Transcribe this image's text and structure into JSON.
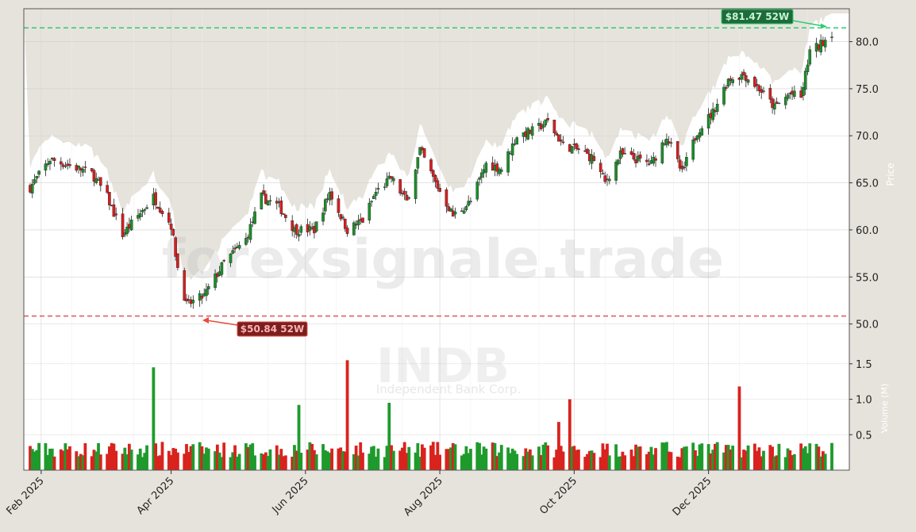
{
  "watermark": {
    "text": "forexsignale.trade",
    "symbol": "INDB",
    "company": "Independent Bank Corp."
  },
  "axis": {
    "price_label": "Price",
    "volume_label": "Volume (M)"
  },
  "annotations": {
    "high": {
      "text": "$81.47 52W",
      "value": 81.47,
      "color": "#2ecc71"
    },
    "low": {
      "text": "$50.84 52W",
      "value": 50.84,
      "color": "#e74c3c"
    }
  },
  "colors": {
    "up": "#1a8f2a",
    "down": "#d81e1e",
    "vol_up": "#1f9a2c",
    "vol_down": "#d9231e"
  },
  "chart_data": {
    "type": "candlestick",
    "x_start": "2025-01-27",
    "x_end": "2026-01-26",
    "x_ticks": [
      {
        "label": "Feb 2025",
        "date": "2025-02-01"
      },
      {
        "label": "Apr 2025",
        "date": "2025-04-01"
      },
      {
        "label": "Jun 2025",
        "date": "2025-06-01"
      },
      {
        "label": "Aug 2025",
        "date": "2025-08-01"
      },
      {
        "label": "Oct 2025",
        "date": "2025-10-01"
      },
      {
        "label": "Dec 2025",
        "date": "2025-12-01"
      }
    ],
    "price_ylim": [
      48.2,
      83.5
    ],
    "price_ticks": [
      "50.0",
      "55.0",
      "60.0",
      "65.0",
      "70.0",
      "75.0",
      "80.0"
    ],
    "volume_ylim": [
      0,
      1.8
    ],
    "volume_ticks": [
      "0.5",
      "1.0",
      "1.5"
    ],
    "price_anchors": [
      [
        "2025-01-27",
        64.5
      ],
      [
        "2025-02-05",
        67.5
      ],
      [
        "2025-02-18",
        66.5
      ],
      [
        "2025-02-24",
        66.0
      ],
      [
        "2025-03-03",
        63.5
      ],
      [
        "2025-03-10",
        59.5
      ],
      [
        "2025-03-17",
        61.5
      ],
      [
        "2025-03-24",
        63.5
      ],
      [
        "2025-04-01",
        60.5
      ],
      [
        "2025-04-04",
        56.0
      ],
      [
        "2025-04-08",
        52.0
      ],
      [
        "2025-04-16",
        53.0
      ],
      [
        "2025-04-25",
        56.5
      ],
      [
        "2025-05-05",
        59.0
      ],
      [
        "2025-05-12",
        63.5
      ],
      [
        "2025-05-20",
        62.5
      ],
      [
        "2025-05-27",
        60.0
      ],
      [
        "2025-06-05",
        60.0
      ],
      [
        "2025-06-12",
        64.0
      ],
      [
        "2025-06-20",
        60.0
      ],
      [
        "2025-06-27",
        61.0
      ],
      [
        "2025-07-03",
        64.0
      ],
      [
        "2025-07-10",
        65.5
      ],
      [
        "2025-07-17",
        63.0
      ],
      [
        "2025-07-23",
        68.5
      ],
      [
        "2025-07-30",
        65.0
      ],
      [
        "2025-08-07",
        61.5
      ],
      [
        "2025-08-15",
        63.0
      ],
      [
        "2025-08-22",
        67.0
      ],
      [
        "2025-08-29",
        66.5
      ],
      [
        "2025-09-05",
        70.0
      ],
      [
        "2025-09-12",
        70.5
      ],
      [
        "2025-09-19",
        71.5
      ],
      [
        "2025-09-26",
        69.0
      ],
      [
        "2025-10-03",
        68.5
      ],
      [
        "2025-10-10",
        67.5
      ],
      [
        "2025-10-15",
        65.0
      ],
      [
        "2025-10-22",
        68.0
      ],
      [
        "2025-10-29",
        67.5
      ],
      [
        "2025-11-05",
        67.0
      ],
      [
        "2025-11-12",
        70.0
      ],
      [
        "2025-11-19",
        66.0
      ],
      [
        "2025-11-26",
        70.5
      ],
      [
        "2025-12-03",
        72.5
      ],
      [
        "2025-12-10",
        76.0
      ],
      [
        "2025-12-17",
        76.5
      ],
      [
        "2025-12-24",
        75.0
      ],
      [
        "2025-12-31",
        73.0
      ],
      [
        "2026-01-07",
        74.5
      ],
      [
        "2026-01-12",
        74.0
      ],
      [
        "2026-01-16",
        79.0
      ],
      [
        "2026-01-20",
        79.5
      ],
      [
        "2026-01-26",
        81.0
      ]
    ],
    "volume_spikes": [
      [
        "2025-03-24",
        1.45
      ],
      [
        "2025-05-29",
        0.92
      ],
      [
        "2025-06-20",
        1.55
      ],
      [
        "2025-07-09",
        0.95
      ],
      [
        "2025-09-29",
        1.0
      ],
      [
        "2025-09-24",
        0.68
      ],
      [
        "2025-12-15",
        1.18
      ]
    ]
  }
}
